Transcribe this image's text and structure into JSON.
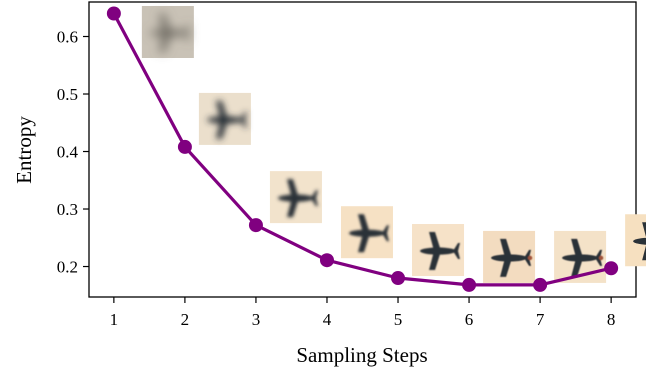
{
  "chart_data": {
    "type": "line",
    "xlabel": "Sampling Steps",
    "ylabel": "Entropy",
    "x": [
      1,
      2,
      3,
      4,
      5,
      6,
      7,
      8
    ],
    "xticks": [
      "1",
      "2",
      "3",
      "4",
      "5",
      "6",
      "7",
      "8"
    ],
    "yticks": [
      "0.2",
      "0.3",
      "0.4",
      "0.5",
      "0.6"
    ],
    "ytick_values": [
      0.2,
      0.3,
      0.4,
      0.5,
      0.6
    ],
    "xlim": [
      0.65,
      8.35
    ],
    "ylim": [
      0.147,
      0.66
    ],
    "series": [
      {
        "values": [
          0.64,
          0.408,
          0.272,
          0.211,
          0.18,
          0.168,
          0.168,
          0.197
        ],
        "color": "#800080"
      }
    ],
    "thumbnails": {
      "description": "small airplane image thumbnail next to each data point, progressively sharper",
      "blur_levels": [
        5,
        3.2,
        1.8,
        1.2,
        0.9,
        0.6,
        0.5,
        0.3
      ],
      "backgrounds": [
        "#c9c2b6",
        "#ebdfcc",
        "#f2e3cc",
        "#f6e1c4",
        "#f6e2c8",
        "#f3dcc0",
        "#f4e2c8",
        "#f6e0c0"
      ]
    },
    "grid": false
  }
}
